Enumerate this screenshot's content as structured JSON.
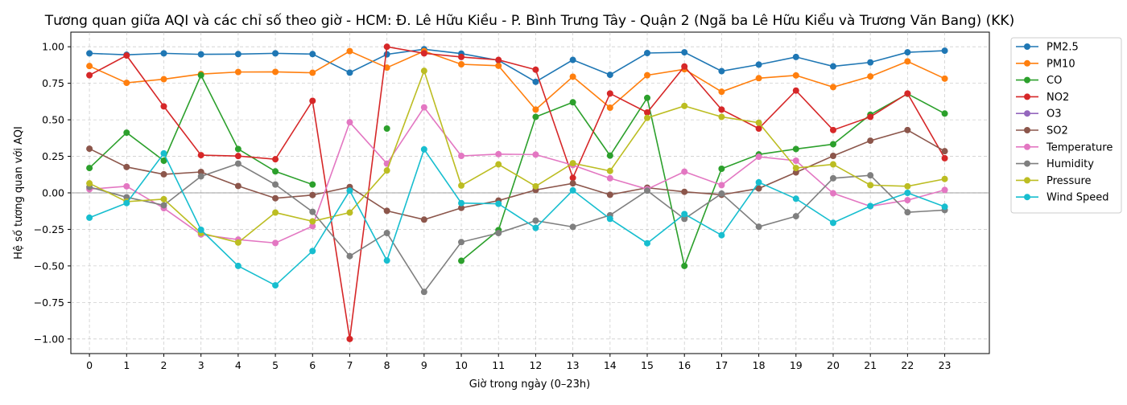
{
  "chart_data": {
    "type": "line",
    "title": "Tương quan giữa AQI và các chỉ số theo giờ - HCM: Đ. Lê Hữu Kiều - P. Bình Trưng Tây - Quận 2 (Ngã ba Lê Hữu Kiểu và Trương Văn Bang) (KK)",
    "xlabel": "Giờ trong ngày (0–23h)",
    "ylabel": "Hệ số tương quan với AQI",
    "x": [
      0,
      1,
      2,
      3,
      4,
      5,
      6,
      7,
      8,
      9,
      10,
      11,
      12,
      13,
      14,
      15,
      16,
      17,
      18,
      19,
      20,
      21,
      22,
      23
    ],
    "x_tick_labels": [
      "0",
      "1",
      "2",
      "3",
      "4",
      "5",
      "6",
      "7",
      "8",
      "9",
      "10",
      "11",
      "12",
      "13",
      "14",
      "15",
      "16",
      "17",
      "18",
      "19",
      "20",
      "21",
      "22",
      "23"
    ],
    "ylim": [
      -1.1,
      1.1
    ],
    "y_ticks": [
      -1.0,
      -0.75,
      -0.5,
      -0.25,
      0.0,
      0.25,
      0.5,
      0.75,
      1.0
    ],
    "y_tick_labels": [
      "−1.00",
      "−0.75",
      "−0.50",
      "−0.25",
      "0.00",
      "0.25",
      "0.50",
      "0.75",
      "1.00"
    ],
    "grid": true,
    "legend_position": "outside top-right",
    "series": [
      {
        "name": "PM2.5",
        "color": "#1f77b4",
        "values": [
          0.955,
          0.945,
          0.955,
          0.948,
          0.95,
          0.955,
          0.95,
          0.823,
          0.948,
          0.983,
          0.953,
          0.907,
          0.76,
          0.91,
          0.808,
          0.957,
          0.962,
          0.833,
          0.878,
          0.93,
          0.866,
          0.893,
          0.962,
          0.973
        ]
      },
      {
        "name": "PM10",
        "color": "#ff7f0e",
        "values": [
          0.868,
          0.753,
          0.778,
          0.813,
          0.827,
          0.828,
          0.822,
          0.97,
          0.857,
          0.97,
          0.88,
          0.87,
          0.57,
          0.795,
          0.583,
          0.805,
          0.846,
          0.692,
          0.785,
          0.804,
          0.724,
          0.797,
          0.9,
          0.782
        ]
      },
      {
        "name": "CO",
        "color": "#2ca02c",
        "values": [
          0.17,
          0.412,
          0.22,
          0.805,
          0.3,
          0.147,
          0.057,
          null,
          0.44,
          null,
          -0.465,
          -0.255,
          0.52,
          0.62,
          0.255,
          0.65,
          -0.5,
          0.165,
          0.263,
          0.3,
          0.333,
          0.535,
          0.678,
          0.543
        ]
      },
      {
        "name": "NO2",
        "color": "#d62728",
        "values": [
          0.805,
          0.94,
          0.592,
          0.258,
          0.252,
          0.23,
          0.63,
          -1.0,
          1.0,
          0.955,
          0.93,
          0.91,
          0.843,
          0.103,
          0.68,
          0.55,
          0.865,
          0.57,
          0.44,
          0.7,
          0.43,
          0.52,
          0.68,
          0.237
        ]
      },
      {
        "name": "O3",
        "color": "#9467bd",
        "values": [
          null,
          null,
          null,
          null,
          null,
          null,
          null,
          null,
          null,
          null,
          null,
          null,
          null,
          null,
          null,
          null,
          null,
          null,
          null,
          null,
          null,
          null,
          null,
          null
        ]
      },
      {
        "name": "SO2",
        "color": "#8c564b",
        "values": [
          0.302,
          0.177,
          0.127,
          0.143,
          0.047,
          -0.037,
          -0.015,
          0.04,
          -0.123,
          -0.183,
          -0.103,
          -0.053,
          0.02,
          0.065,
          -0.013,
          0.035,
          0.007,
          -0.013,
          0.03,
          0.14,
          0.253,
          0.357,
          0.43,
          0.285
        ]
      },
      {
        "name": "Temperature",
        "color": "#e377c2",
        "values": [
          0.025,
          0.045,
          -0.105,
          -0.285,
          -0.32,
          -0.343,
          -0.228,
          0.483,
          0.2,
          0.585,
          0.253,
          0.265,
          0.262,
          0.19,
          0.1,
          0.025,
          0.145,
          0.053,
          0.247,
          0.22,
          -0.003,
          -0.092,
          -0.05,
          0.02
        ]
      },
      {
        "name": "Humidity",
        "color": "#7f7f7f",
        "values": [
          0.04,
          -0.03,
          -0.085,
          0.113,
          0.2,
          0.057,
          -0.13,
          -0.433,
          -0.275,
          -0.678,
          -0.337,
          -0.275,
          -0.19,
          -0.233,
          -0.153,
          0.015,
          -0.178,
          -0.005,
          -0.232,
          -0.16,
          0.1,
          0.12,
          -0.133,
          -0.118
        ]
      },
      {
        "name": "Pressure",
        "color": "#bcbd22",
        "values": [
          0.065,
          -0.06,
          -0.043,
          -0.275,
          -0.34,
          -0.135,
          -0.195,
          -0.135,
          0.153,
          0.835,
          0.05,
          0.195,
          0.045,
          0.203,
          0.15,
          0.513,
          0.595,
          0.52,
          0.48,
          0.17,
          0.195,
          0.053,
          0.045,
          0.095
        ]
      },
      {
        "name": "Wind Speed",
        "color": "#17becf",
        "values": [
          -0.17,
          -0.07,
          0.27,
          -0.253,
          -0.5,
          -0.633,
          -0.398,
          0.015,
          -0.463,
          0.298,
          -0.07,
          -0.075,
          -0.24,
          0.017,
          -0.178,
          -0.345,
          -0.145,
          -0.29,
          0.072,
          -0.04,
          -0.205,
          -0.09,
          0.0,
          -0.095
        ]
      }
    ]
  }
}
